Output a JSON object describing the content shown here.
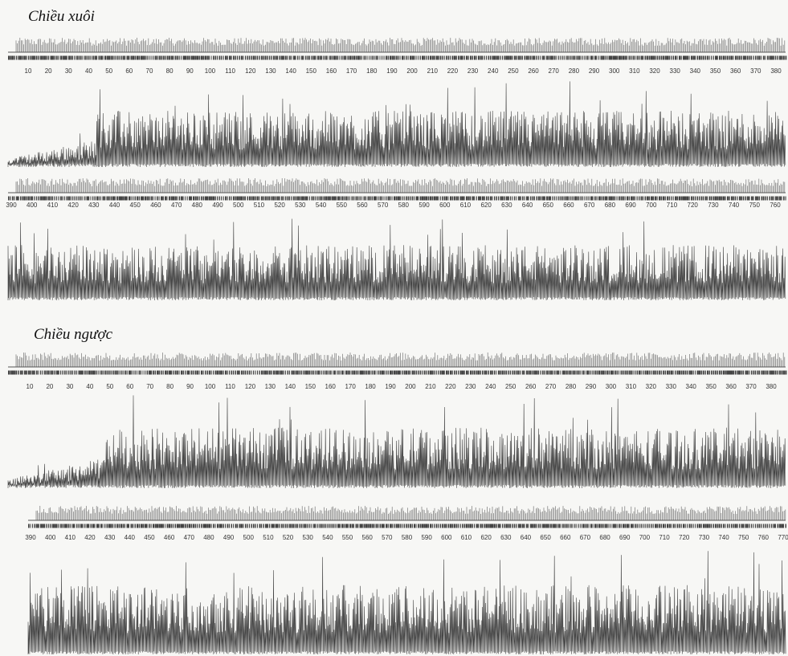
{
  "sections": [
    {
      "title": "Chiều xuôi",
      "tracks": [
        {
          "positions": [
            10,
            20,
            30,
            40,
            50,
            60,
            70,
            80,
            90,
            100,
            110,
            120,
            130,
            140,
            150,
            160,
            170,
            180,
            190,
            200,
            210,
            220,
            230,
            240,
            250,
            260,
            270,
            280,
            290,
            300,
            310,
            320,
            330,
            340,
            350,
            360,
            370,
            380
          ]
        },
        {
          "positions": [
            390,
            400,
            410,
            420,
            430,
            440,
            450,
            460,
            470,
            480,
            490,
            500,
            510,
            520,
            530,
            540,
            550,
            560,
            570,
            580,
            590,
            600,
            610,
            620,
            630,
            640,
            650,
            660,
            670,
            680,
            690,
            700,
            710,
            720,
            730,
            740,
            750,
            760
          ]
        }
      ]
    },
    {
      "title": "Chiều ngược",
      "tracks": [
        {
          "positions": [
            10,
            20,
            30,
            40,
            50,
            60,
            70,
            80,
            90,
            100,
            110,
            120,
            130,
            140,
            150,
            160,
            170,
            180,
            190,
            200,
            210,
            220,
            230,
            240,
            250,
            260,
            270,
            280,
            290,
            300,
            310,
            320,
            330,
            340,
            350,
            360,
            370,
            380
          ]
        },
        {
          "positions": [
            390,
            400,
            410,
            420,
            430,
            440,
            450,
            460,
            470,
            480,
            490,
            500,
            510,
            520,
            530,
            540,
            550,
            560,
            570,
            580,
            590,
            600,
            610,
            620,
            630,
            640,
            650,
            660,
            670,
            680,
            690,
            700,
            710,
            720,
            730,
            740,
            750,
            760,
            770
          ]
        }
      ]
    }
  ]
}
